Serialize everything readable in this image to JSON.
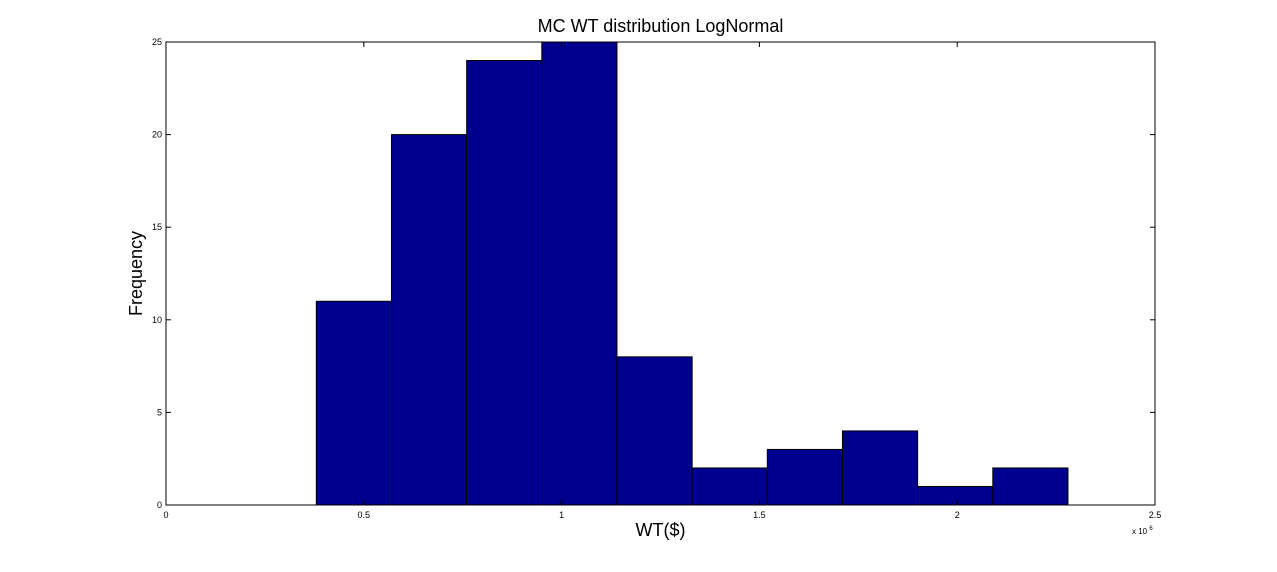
{
  "chart_data": {
    "type": "bar",
    "title": "MC WT distribution LogNormal",
    "xlabel": "WT($)",
    "ylabel": "Frequency",
    "x_scale_base": "x 10",
    "x_scale_exponent": "6",
    "xlim": [
      0,
      2.5
    ],
    "ylim": [
      0,
      25
    ],
    "x_ticks": [
      0,
      0.5,
      1,
      1.5,
      2,
      2.5
    ],
    "x_tick_labels": [
      "0",
      "0.5",
      "1",
      "1.5",
      "2",
      "2.5"
    ],
    "y_ticks": [
      0,
      5,
      10,
      15,
      20,
      25
    ],
    "y_tick_labels": [
      "0",
      "5",
      "10",
      "15",
      "20",
      "25"
    ],
    "bin_edges": [
      0.38,
      0.57,
      0.76,
      0.95,
      1.14,
      1.33,
      1.52,
      1.71,
      1.9,
      2.09,
      2.28
    ],
    "values": [
      11,
      20,
      24,
      25,
      8,
      2,
      3,
      4,
      1,
      2
    ],
    "bar_color": "#00008f",
    "grid": false,
    "legend": "none"
  }
}
